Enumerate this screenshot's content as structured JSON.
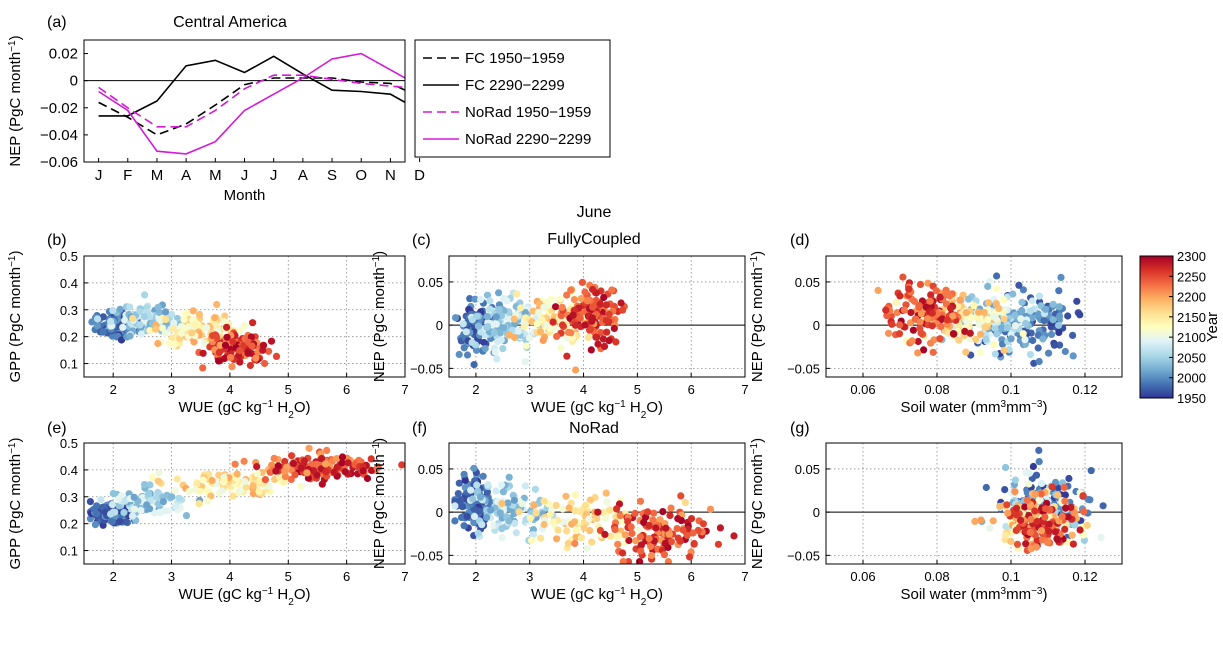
{
  "colors": {
    "fc_line": "#000000",
    "norad_line": "#d21bd6",
    "colormap": [
      "#313695",
      "#4575b4",
      "#74add1",
      "#abd9e9",
      "#e0f3f8",
      "#ffffbf",
      "#fee090",
      "#fdae61",
      "#f46d43",
      "#d73027",
      "#a50026"
    ]
  },
  "chart_data": [
    {
      "id": "a",
      "type": "line",
      "panel_label": "(a)",
      "title": "Central America",
      "xlabel": "Month",
      "ylabel": "NEP (PgC month⁻¹)",
      "categories": [
        "J",
        "F",
        "M",
        "A",
        "M",
        "J",
        "J",
        "A",
        "S",
        "O",
        "N",
        "D"
      ],
      "ylim": [
        -0.06,
        0.03
      ],
      "yticks": [
        -0.06,
        -0.04,
        -0.02,
        0,
        0.02
      ],
      "ytick_labels": [
        "−0.06",
        "−0.04",
        "−0.02",
        "0",
        "0.02"
      ],
      "grid": false,
      "zero_line": true,
      "series": [
        {
          "name": "FC 1950−1959",
          "style": "dashed",
          "color": "#000000",
          "values": [
            -0.016,
            -0.027,
            -0.04,
            -0.032,
            -0.018,
            -0.003,
            0.002,
            0.002,
            0.002,
            -0.001,
            -0.002,
            -0.012
          ]
        },
        {
          "name": "FC 2290−2299",
          "style": "solid",
          "color": "#000000",
          "values": [
            -0.026,
            -0.026,
            -0.015,
            0.011,
            0.015,
            0.006,
            0.018,
            0.005,
            -0.007,
            -0.008,
            -0.01,
            -0.022
          ]
        },
        {
          "name": "NoRad 1950−1959",
          "style": "dashed",
          "color": "#d21bd6",
          "values": [
            -0.005,
            -0.02,
            -0.034,
            -0.034,
            -0.022,
            -0.006,
            0.004,
            0.004,
            0.001,
            -0.002,
            -0.004,
            -0.006
          ]
        },
        {
          "name": "NoRad 2290−2299",
          "style": "solid",
          "color": "#d21bd6",
          "values": [
            -0.008,
            -0.022,
            -0.052,
            -0.054,
            -0.045,
            -0.022,
            -0.01,
            0.002,
            0.016,
            0.02,
            0.008,
            -0.004
          ]
        }
      ],
      "legend": "right-outside"
    },
    {
      "id": "b",
      "type": "scatter",
      "panel_label": "(b)",
      "title": "",
      "xlabel": "WUE (gC kg⁻¹ H₂O)",
      "ylabel": "GPP (PgC month⁻¹)",
      "xlim": [
        1.5,
        7
      ],
      "ylim": [
        0.05,
        0.5
      ],
      "xticks": [
        2,
        3,
        4,
        5,
        6,
        7
      ],
      "xtick_labels": [
        "2",
        "3",
        "4",
        "5",
        "6",
        "7"
      ],
      "yticks": [
        0.1,
        0.2,
        0.3,
        0.4,
        0.5
      ],
      "ytick_labels": [
        "0.1",
        "0.2",
        "0.3",
        "0.4",
        "0.5"
      ],
      "grid": true,
      "zero_line": false,
      "color_by": "year",
      "clusters": [
        {
          "year_range": [
            1950,
            2010
          ],
          "x_mean": 2.1,
          "x_sd": 0.22,
          "y_mean": 0.245,
          "y_sd": 0.025,
          "n": 110
        },
        {
          "year_range": [
            2010,
            2100
          ],
          "x_mean": 2.6,
          "x_sd": 0.3,
          "y_mean": 0.26,
          "y_sd": 0.025,
          "n": 110
        },
        {
          "year_range": [
            2100,
            2200
          ],
          "x_mean": 3.4,
          "x_sd": 0.32,
          "y_mean": 0.23,
          "y_sd": 0.03,
          "n": 100
        },
        {
          "year_range": [
            2200,
            2300
          ],
          "x_mean": 4.1,
          "x_sd": 0.25,
          "y_mean": 0.16,
          "y_sd": 0.03,
          "n": 130
        }
      ]
    },
    {
      "id": "c",
      "type": "scatter",
      "panel_label": "(c)",
      "title": "June",
      "subtitle": "FullyCoupled",
      "xlabel": "WUE (gC kg⁻¹ H₂O)",
      "ylabel": "NEP (PgC month⁻¹)",
      "xlim": [
        1.5,
        7
      ],
      "ylim": [
        -0.06,
        0.08
      ],
      "xticks": [
        2,
        3,
        4,
        5,
        6,
        7
      ],
      "xtick_labels": [
        "2",
        "3",
        "4",
        "5",
        "6",
        "7"
      ],
      "yticks": [
        -0.05,
        0,
        0.05
      ],
      "ytick_labels": [
        "−0.05",
        "0",
        "0.05"
      ],
      "grid": true,
      "zero_line": true,
      "color_by": "year",
      "clusters": [
        {
          "year_range": [
            1950,
            2010
          ],
          "x_mean": 2.0,
          "x_sd": 0.18,
          "y_mean": 0.0,
          "y_sd": 0.016,
          "n": 110
        },
        {
          "year_range": [
            2010,
            2100
          ],
          "x_mean": 2.5,
          "x_sd": 0.3,
          "y_mean": 0.002,
          "y_sd": 0.015,
          "n": 110
        },
        {
          "year_range": [
            2100,
            2200
          ],
          "x_mean": 3.5,
          "x_sd": 0.35,
          "y_mean": 0.005,
          "y_sd": 0.015,
          "n": 100
        },
        {
          "year_range": [
            2200,
            2300
          ],
          "x_mean": 4.1,
          "x_sd": 0.3,
          "y_mean": 0.012,
          "y_sd": 0.017,
          "n": 130
        }
      ]
    },
    {
      "id": "d",
      "type": "scatter",
      "panel_label": "(d)",
      "title": "",
      "xlabel": "Soil water (mm³mm⁻³)",
      "ylabel": "NEP (PgC month⁻¹)",
      "xlim": [
        0.05,
        0.13
      ],
      "ylim": [
        -0.06,
        0.08
      ],
      "xticks": [
        0.06,
        0.08,
        0.1,
        0.12
      ],
      "xtick_labels": [
        "0.06",
        "0.08",
        "0.1",
        "0.12"
      ],
      "yticks": [
        -0.05,
        0,
        0.05
      ],
      "ytick_labels": [
        "−0.05",
        "0",
        "0.05"
      ],
      "grid": true,
      "zero_line": true,
      "color_by": "year",
      "clusters": [
        {
          "year_range": [
            1950,
            2010
          ],
          "x_mean": 0.105,
          "x_sd": 0.007,
          "y_mean": 0.0,
          "y_sd": 0.017,
          "n": 110
        },
        {
          "year_range": [
            2010,
            2100
          ],
          "x_mean": 0.097,
          "x_sd": 0.007,
          "y_mean": 0.003,
          "y_sd": 0.016,
          "n": 110
        },
        {
          "year_range": [
            2100,
            2200
          ],
          "x_mean": 0.087,
          "x_sd": 0.006,
          "y_mean": 0.006,
          "y_sd": 0.016,
          "n": 100
        },
        {
          "year_range": [
            2200,
            2300
          ],
          "x_mean": 0.077,
          "x_sd": 0.005,
          "y_mean": 0.013,
          "y_sd": 0.017,
          "n": 130
        }
      ]
    },
    {
      "id": "e",
      "type": "scatter",
      "panel_label": "(e)",
      "title": "",
      "xlabel": "WUE (gC kg⁻¹ H₂O)",
      "ylabel": "GPP (PgC month⁻¹)",
      "xlim": [
        1.5,
        7
      ],
      "ylim": [
        0.05,
        0.5
      ],
      "xticks": [
        2,
        3,
        4,
        5,
        6,
        7
      ],
      "xtick_labels": [
        "2",
        "3",
        "4",
        "5",
        "6",
        "7"
      ],
      "yticks": [
        0.1,
        0.2,
        0.3,
        0.4,
        0.5
      ],
      "ytick_labels": [
        "0.1",
        "0.2",
        "0.3",
        "0.4",
        "0.5"
      ],
      "grid": true,
      "zero_line": false,
      "color_by": "year",
      "clusters": [
        {
          "year_range": [
            1950,
            2010
          ],
          "x_mean": 1.95,
          "x_sd": 0.15,
          "y_mean": 0.24,
          "y_sd": 0.02,
          "n": 110
        },
        {
          "year_range": [
            2010,
            2100
          ],
          "x_mean": 2.6,
          "x_sd": 0.35,
          "y_mean": 0.28,
          "y_sd": 0.025,
          "n": 110
        },
        {
          "year_range": [
            2100,
            2200
          ],
          "x_mean": 4.0,
          "x_sd": 0.5,
          "y_mean": 0.35,
          "y_sd": 0.025,
          "n": 100
        },
        {
          "year_range": [
            2200,
            2300
          ],
          "x_mean": 5.5,
          "x_sd": 0.5,
          "y_mean": 0.41,
          "y_sd": 0.025,
          "n": 130
        }
      ]
    },
    {
      "id": "f",
      "type": "scatter",
      "panel_label": "(f)",
      "title": "NoRad",
      "xlabel": "WUE (gC kg⁻¹ H₂O)",
      "ylabel": "NEP (PgC month⁻¹)",
      "xlim": [
        1.5,
        7
      ],
      "ylim": [
        -0.06,
        0.08
      ],
      "xticks": [
        2,
        3,
        4,
        5,
        6,
        7
      ],
      "xtick_labels": [
        "2",
        "3",
        "4",
        "5",
        "6",
        "7"
      ],
      "yticks": [
        -0.05,
        0,
        0.05
      ],
      "ytick_labels": [
        "−0.05",
        "0",
        "0.05"
      ],
      "grid": true,
      "zero_line": true,
      "color_by": "year",
      "clusters": [
        {
          "year_range": [
            1950,
            2010
          ],
          "x_mean": 1.95,
          "x_sd": 0.15,
          "y_mean": 0.01,
          "y_sd": 0.017,
          "n": 110
        },
        {
          "year_range": [
            2010,
            2100
          ],
          "x_mean": 2.6,
          "x_sd": 0.35,
          "y_mean": 0.003,
          "y_sd": 0.016,
          "n": 110
        },
        {
          "year_range": [
            2100,
            2200
          ],
          "x_mean": 4.0,
          "x_sd": 0.5,
          "y_mean": -0.008,
          "y_sd": 0.015,
          "n": 100
        },
        {
          "year_range": [
            2200,
            2300
          ],
          "x_mean": 5.4,
          "x_sd": 0.5,
          "y_mean": -0.022,
          "y_sd": 0.015,
          "n": 130
        }
      ]
    },
    {
      "id": "g",
      "type": "scatter",
      "panel_label": "(g)",
      "title": "",
      "xlabel": "Soil water (mm³mm⁻³)",
      "ylabel": "NEP (PgC month⁻¹)",
      "xlim": [
        0.05,
        0.13
      ],
      "ylim": [
        -0.06,
        0.08
      ],
      "xticks": [
        0.06,
        0.08,
        0.1,
        0.12
      ],
      "xtick_labels": [
        "0.06",
        "0.08",
        "0.1",
        "0.12"
      ],
      "yticks": [
        -0.05,
        0,
        0.05
      ],
      "ytick_labels": [
        "−0.05",
        "0",
        "0.05"
      ],
      "grid": true,
      "zero_line": true,
      "color_by": "year",
      "clusters": [
        {
          "year_range": [
            1950,
            2010
          ],
          "x_mean": 0.11,
          "x_sd": 0.006,
          "y_mean": 0.012,
          "y_sd": 0.018,
          "n": 90
        },
        {
          "year_range": [
            2010,
            2100
          ],
          "x_mean": 0.108,
          "x_sd": 0.006,
          "y_mean": 0.004,
          "y_sd": 0.016,
          "n": 90
        },
        {
          "year_range": [
            2100,
            2200
          ],
          "x_mean": 0.107,
          "x_sd": 0.006,
          "y_mean": -0.008,
          "y_sd": 0.016,
          "n": 90
        },
        {
          "year_range": [
            2200,
            2300
          ],
          "x_mean": 0.107,
          "x_sd": 0.005,
          "y_mean": -0.015,
          "y_sd": 0.016,
          "n": 110
        }
      ]
    }
  ],
  "colorbar": {
    "label": "Year",
    "range": [
      1950,
      2300
    ],
    "ticks": [
      1950,
      2000,
      2050,
      2100,
      2150,
      2200,
      2250,
      2300
    ],
    "tick_labels": [
      "1950",
      "2000",
      "2050",
      "2100",
      "2150",
      "2200",
      "2250",
      "2300"
    ]
  }
}
